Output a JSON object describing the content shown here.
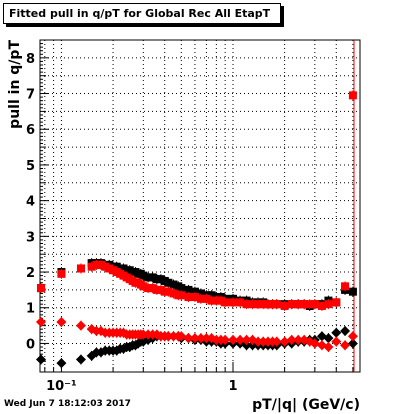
{
  "title": "Fitted pull in q/pT for Global Rec All EtapT",
  "footer": "Wed Jun  7 18:12:03 2017",
  "colors": {
    "series_black": "#000000",
    "series_red": "#ff0000",
    "grid": "#000000"
  },
  "chart_data": {
    "type": "scatter",
    "title": "Fitted pull in q/pT for Global Rec All EtapT",
    "xlabel": "pT/|q| (GeV/c)",
    "ylabel": "pull in q/pT",
    "xscale": "log",
    "xlim": [
      0.075,
      5.5
    ],
    "ylim": [
      -0.8,
      8.5
    ],
    "grid": true,
    "x_tick_labels": [
      {
        "value": 0.1,
        "label": "10⁻¹"
      },
      {
        "value": 1,
        "label": "1"
      }
    ],
    "y_tick_labels": [
      0,
      1,
      2,
      3,
      4,
      5,
      6,
      7,
      8
    ],
    "series": [
      {
        "color": "#000000",
        "marker": "square",
        "x": [
          0.076,
          0.1,
          0.13,
          0.15,
          0.16,
          0.17,
          0.18,
          0.19,
          0.2,
          0.21,
          0.22,
          0.23,
          0.24,
          0.25,
          0.26,
          0.27,
          0.28,
          0.29,
          0.3,
          0.32,
          0.34,
          0.36,
          0.38,
          0.4,
          0.42,
          0.45,
          0.48,
          0.5,
          0.55,
          0.6,
          0.65,
          0.7,
          0.75,
          0.8,
          0.85,
          0.9,
          1.0,
          1.1,
          1.2,
          1.3,
          1.4,
          1.5,
          1.6,
          1.7,
          1.8,
          2.0,
          2.2,
          2.4,
          2.6,
          2.8,
          3.0,
          3.3,
          3.6,
          4.0,
          4.5,
          5.0
        ],
        "y": [
          1.55,
          2.0,
          2.1,
          2.25,
          2.25,
          2.25,
          2.2,
          2.2,
          2.15,
          2.15,
          2.1,
          2.1,
          2.05,
          2.05,
          2.0,
          2.0,
          1.95,
          1.95,
          1.9,
          1.85,
          1.85,
          1.8,
          1.8,
          1.75,
          1.7,
          1.65,
          1.6,
          1.55,
          1.5,
          1.45,
          1.4,
          1.35,
          1.35,
          1.3,
          1.3,
          1.25,
          1.25,
          1.2,
          1.2,
          1.15,
          1.15,
          1.15,
          1.1,
          1.1,
          1.1,
          1.1,
          1.1,
          1.1,
          1.1,
          1.05,
          1.1,
          1.1,
          1.2,
          1.15,
          1.5,
          1.45
        ]
      },
      {
        "color": "#ff0000",
        "marker": "square",
        "x": [
          0.076,
          0.1,
          0.13,
          0.15,
          0.16,
          0.17,
          0.18,
          0.19,
          0.2,
          0.21,
          0.22,
          0.23,
          0.24,
          0.25,
          0.26,
          0.27,
          0.28,
          0.29,
          0.3,
          0.32,
          0.34,
          0.36,
          0.38,
          0.4,
          0.42,
          0.45,
          0.48,
          0.5,
          0.55,
          0.6,
          0.65,
          0.7,
          0.75,
          0.8,
          0.85,
          0.9,
          1.0,
          1.1,
          1.2,
          1.3,
          1.4,
          1.5,
          1.6,
          1.7,
          1.8,
          2.0,
          2.2,
          2.4,
          2.6,
          2.8,
          3.0,
          3.3,
          3.6,
          4.0,
          4.5,
          5.0
        ],
        "y": [
          1.55,
          1.95,
          2.1,
          2.15,
          2.2,
          2.2,
          2.15,
          2.1,
          2.05,
          2.0,
          1.95,
          1.9,
          1.85,
          1.8,
          1.75,
          1.7,
          1.7,
          1.65,
          1.6,
          1.55,
          1.55,
          1.5,
          1.5,
          1.45,
          1.45,
          1.4,
          1.35,
          1.35,
          1.3,
          1.3,
          1.25,
          1.25,
          1.2,
          1.2,
          1.2,
          1.15,
          1.15,
          1.15,
          1.1,
          1.1,
          1.1,
          1.1,
          1.1,
          1.1,
          1.1,
          1.05,
          1.1,
          1.1,
          1.1,
          1.1,
          1.1,
          1.05,
          1.1,
          1.15,
          1.6,
          6.95
        ]
      },
      {
        "color": "#000000",
        "marker": "diamond",
        "x": [
          0.076,
          0.1,
          0.13,
          0.15,
          0.16,
          0.17,
          0.18,
          0.19,
          0.2,
          0.21,
          0.22,
          0.23,
          0.24,
          0.25,
          0.26,
          0.27,
          0.28,
          0.29,
          0.3,
          0.32,
          0.34,
          0.36,
          0.38,
          0.4,
          0.42,
          0.45,
          0.48,
          0.5,
          0.55,
          0.6,
          0.65,
          0.7,
          0.75,
          0.8,
          0.85,
          0.9,
          1.0,
          1.1,
          1.2,
          1.3,
          1.4,
          1.5,
          1.6,
          1.7,
          1.8,
          2.0,
          2.2,
          2.4,
          2.6,
          2.8,
          3.0,
          3.3,
          3.6,
          4.0,
          4.5,
          5.0
        ],
        "y": [
          -0.45,
          -0.55,
          -0.45,
          -0.35,
          -0.25,
          -0.25,
          -0.2,
          -0.2,
          -0.2,
          -0.2,
          -0.15,
          -0.15,
          -0.1,
          -0.1,
          -0.05,
          -0.05,
          0.0,
          0.05,
          0.05,
          0.1,
          0.15,
          0.2,
          0.2,
          0.2,
          0.2,
          0.2,
          0.2,
          0.15,
          0.15,
          0.1,
          0.1,
          0.05,
          0.05,
          0.05,
          0.0,
          0.0,
          0.0,
          0.0,
          -0.05,
          -0.05,
          -0.05,
          -0.05,
          -0.05,
          -0.05,
          -0.05,
          0.0,
          0.0,
          0.05,
          0.05,
          0.1,
          0.1,
          0.2,
          0.15,
          0.3,
          0.35,
          0.0
        ]
      },
      {
        "color": "#ff0000",
        "marker": "diamond",
        "x": [
          0.076,
          0.1,
          0.13,
          0.15,
          0.16,
          0.17,
          0.18,
          0.19,
          0.2,
          0.21,
          0.22,
          0.23,
          0.24,
          0.25,
          0.26,
          0.27,
          0.28,
          0.29,
          0.3,
          0.32,
          0.34,
          0.36,
          0.38,
          0.4,
          0.42,
          0.45,
          0.48,
          0.5,
          0.55,
          0.6,
          0.65,
          0.7,
          0.75,
          0.8,
          0.85,
          0.9,
          1.0,
          1.1,
          1.2,
          1.3,
          1.4,
          1.5,
          1.6,
          1.7,
          1.8,
          2.0,
          2.2,
          2.4,
          2.6,
          2.8,
          3.0,
          3.3,
          3.6,
          4.0,
          4.5,
          5.0
        ],
        "y": [
          0.6,
          0.6,
          0.5,
          0.4,
          0.35,
          0.35,
          0.3,
          0.3,
          0.3,
          0.3,
          0.3,
          0.3,
          0.25,
          0.25,
          0.25,
          0.25,
          0.25,
          0.25,
          0.25,
          0.25,
          0.25,
          0.25,
          0.2,
          0.2,
          0.2,
          0.2,
          0.2,
          0.2,
          0.15,
          0.15,
          0.15,
          0.15,
          0.15,
          0.1,
          0.1,
          0.1,
          0.1,
          0.1,
          0.1,
          0.1,
          0.05,
          0.05,
          0.05,
          0.05,
          0.05,
          0.05,
          0.1,
          0.1,
          0.1,
          0.05,
          0.0,
          -0.05,
          -0.1,
          0.05,
          -0.05,
          0.2
        ]
      }
    ]
  }
}
